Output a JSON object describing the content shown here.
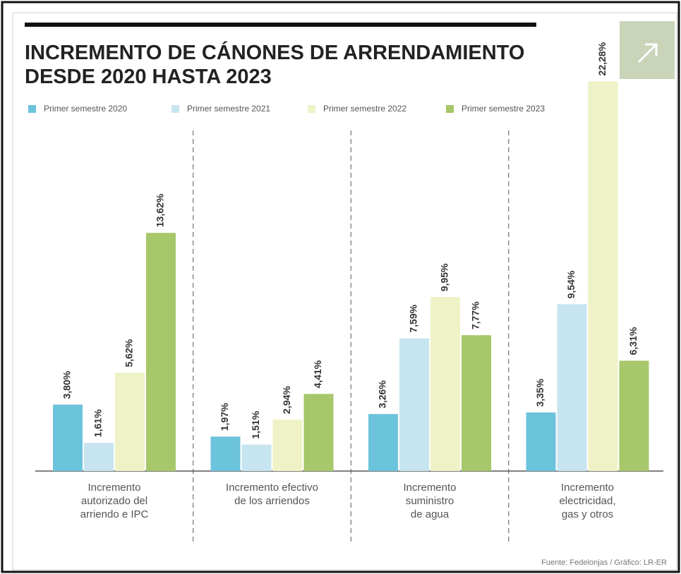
{
  "chart_data": {
    "type": "bar",
    "title": "INCREMENTO DE CÁNONES DE ARRENDAMIENTO\nDESDE 2020 HASTA 2023",
    "categories": [
      "Incremento\nautorizado del\narriendo e IPC",
      "Incremento efectivo\nde los arriendos",
      "Incremento\nsuministro\nde agua",
      "Incremento\nelectricidad,\ngas y otros"
    ],
    "series": [
      {
        "name": "Primer semestre 2020",
        "color": "#6cc3dc",
        "values": [
          3.8,
          1.97,
          3.26,
          3.35
        ],
        "value_labels": [
          "3,80%",
          "1,97%",
          "3,26%",
          "3,35%"
        ]
      },
      {
        "name": "Primer semestre 2021",
        "color": "#c7e5f0",
        "values": [
          1.61,
          1.51,
          7.59,
          9.54
        ],
        "value_labels": [
          "1,61%",
          "1,51%",
          "7,59%",
          "9,54%"
        ]
      },
      {
        "name": "Primer semestre 2022",
        "color": "#eef2c6",
        "values": [
          5.62,
          2.94,
          9.95,
          22.28
        ],
        "value_labels": [
          "5,62%",
          "2,94%",
          "9,95%",
          "22,28%"
        ]
      },
      {
        "name": "Primer semestre 2023",
        "color": "#a7c76b",
        "values": [
          13.62,
          4.41,
          7.77,
          6.31
        ],
        "value_labels": [
          "13,62%",
          "4,41%",
          "7,77%",
          "6,31%"
        ]
      }
    ],
    "source": "Fuente: Fedelonjas / Gráfico: LR-ER"
  }
}
